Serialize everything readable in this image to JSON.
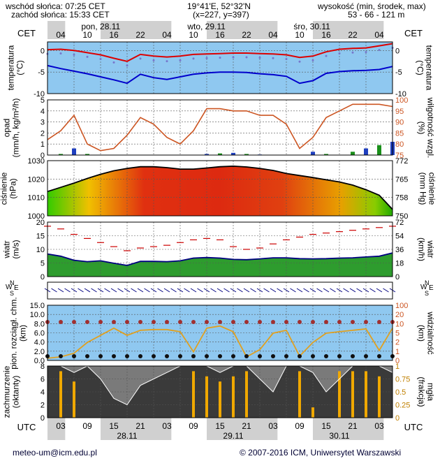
{
  "header": {
    "sunrise": "wschód słońca: 07:25 CET",
    "sunset": "zachód słońca: 15:33 CET",
    "coords": "19°41'E, 52°32'N",
    "grid": "(x=227, y=397)",
    "elev_label": "wysokość (min, środek, max)",
    "elev_values": "53 - 66 - 121 m"
  },
  "footer": {
    "email": "meteo-um@icm.edu.pl",
    "copyright": "© 2007-2016 ICM, Uniwersytet Warszawski"
  },
  "timezone_top": "CET",
  "timezone_bottom": "UTC",
  "top_days": [
    {
      "label": "pon, 28.11",
      "start_hour": 7
    },
    {
      "label": "wto, 29.11",
      "start_hour": 31
    },
    {
      "label": "śro, 30.11",
      "start_hour": 55
    }
  ],
  "top_hours": [
    "04",
    "10",
    "16",
    "22",
    "04",
    "10",
    "16",
    "22",
    "04",
    "10",
    "16",
    "22",
    "04"
  ],
  "bottom_hours": [
    "03",
    "09",
    "15",
    "21",
    "03",
    "09",
    "15",
    "21",
    "03",
    "09",
    "15",
    "21",
    "03"
  ],
  "bottom_days": [
    "28.11",
    "29.11",
    "30.11"
  ],
  "colors": {
    "temp_line": "#dd0000",
    "dew_line": "#0000cc",
    "humidity_line": "#cc5522",
    "pressure_line": "#000000",
    "wind_line": "#000080",
    "gust_marks": "#cc0000",
    "panel_blue": "#8fc8f0",
    "panel_gray": "#d0d0d0"
  },
  "chart_data": [
    {
      "type": "line",
      "panel": "temperature",
      "ylabel_left": "temperatura\n(°C)",
      "ylabel_right": "(°C)\ntemperatura",
      "ylim": [
        -10,
        2
      ],
      "yticks": [
        0,
        -5,
        -10
      ],
      "x_hours": [
        0,
        3,
        6,
        9,
        12,
        15,
        18,
        21,
        24,
        27,
        30,
        33,
        36,
        39,
        42,
        45,
        48,
        51,
        54,
        57,
        60,
        63,
        66,
        69,
        72,
        75,
        78
      ],
      "series": [
        {
          "values": [
            0.2,
            0.3,
            0.0,
            -0.5,
            -1.0,
            -1.8,
            -2.5,
            -0.9,
            -1.3,
            -1.5,
            -1.3,
            -0.9,
            -0.8,
            -0.7,
            -0.6,
            -0.6,
            -0.7,
            -0.8,
            -1.0,
            -1.6,
            -1.3,
            -0.3,
            0.3,
            0.5,
            0.6,
            1.1,
            1.6
          ]
        },
        {
          "values": [
            -3.5,
            -4.2,
            -4.8,
            -5.4,
            -6.1,
            -6.8,
            -7.6,
            -5.5,
            -6.3,
            -6.7,
            -6.1,
            -5.5,
            -5.2,
            -5.0,
            -5.0,
            -5.1,
            -5.4,
            -5.6,
            -6.0,
            -7.6,
            -7.0,
            -5.3,
            -4.9,
            -4.7,
            -4.6,
            -4.4,
            -3.7
          ]
        }
      ]
    },
    {
      "type": "line",
      "panel": "precipitation",
      "ylabel_left": "opad\n(mm/h, kg/m²/h)",
      "ylabel_right": "(%)\nwilgotność wzgl.",
      "ylim": [
        0,
        5
      ],
      "yticks": [
        0,
        1,
        2,
        3,
        4,
        5
      ],
      "y2lim": [
        75,
        100
      ],
      "y2ticks": [
        75,
        80,
        85,
        90,
        95,
        100
      ],
      "x_hours": [
        0,
        3,
        6,
        9,
        12,
        15,
        18,
        21,
        24,
        27,
        30,
        33,
        36,
        39,
        42,
        45,
        48,
        51,
        54,
        57,
        60,
        63,
        66,
        69,
        72,
        75,
        78
      ],
      "series": [
        {
          "values": [
            82,
            86,
            93,
            80,
            77,
            78,
            84,
            92,
            89,
            83,
            80,
            86,
            96,
            96,
            95,
            95,
            93,
            93,
            89,
            78,
            83,
            92,
            95,
            98,
            98,
            98,
            97
          ]
        }
      ],
      "precip_bars": [
        0,
        0.1,
        0.6,
        0.1,
        0,
        0,
        0,
        0,
        0,
        0,
        0,
        0,
        0.1,
        0.15,
        0.2,
        0.1,
        0.05,
        0,
        0,
        0,
        0.3,
        0.1,
        0,
        0.3,
        0.6,
        0.9,
        1.2
      ]
    },
    {
      "type": "area",
      "panel": "pressure",
      "ylabel_left": "ciśnienie\n(hPa)",
      "ylabel_right": "(mm Hg)\nciśnienie",
      "ylim": [
        1000,
        1030
      ],
      "yticks": [
        1000,
        1010,
        1020,
        1030
      ],
      "y2ticks": [
        750,
        758,
        765,
        772
      ],
      "x_hours": [
        0,
        3,
        6,
        9,
        12,
        15,
        18,
        21,
        24,
        27,
        30,
        33,
        36,
        39,
        42,
        45,
        48,
        51,
        54,
        57,
        60,
        63,
        66,
        69,
        72,
        75,
        78
      ],
      "series": [
        {
          "values": [
            1013.2,
            1015.5,
            1017.8,
            1020.3,
            1022.6,
            1024.5,
            1025.8,
            1026.7,
            1026.7,
            1026.2,
            1025.4,
            1025.4,
            1026.0,
            1026.7,
            1027.0,
            1026.6,
            1025.8,
            1024.7,
            1023.0,
            1021.9,
            1020.8,
            1019.6,
            1018.4,
            1016.7,
            1014.2,
            1011.2,
            1003.5
          ]
        }
      ]
    },
    {
      "type": "area",
      "panel": "wind",
      "ylabel_left": "wiatr\n(m/s)",
      "ylabel_right": "(km/h)\nwiatr",
      "ylim": [
        0,
        20
      ],
      "yticks": [
        0,
        5,
        10,
        15,
        20
      ],
      "y2ticks": [
        0,
        18,
        36,
        54,
        72
      ],
      "x_hours": [
        0,
        3,
        6,
        9,
        12,
        15,
        18,
        21,
        24,
        27,
        30,
        33,
        36,
        39,
        42,
        45,
        48,
        51,
        54,
        57,
        60,
        63,
        66,
        69,
        72,
        75,
        78
      ],
      "series": [
        {
          "values": [
            8.3,
            7.5,
            6.0,
            5.5,
            5.8,
            4.9,
            4.1,
            5.6,
            5.6,
            5.5,
            5.8,
            6.8,
            7.0,
            6.8,
            6.3,
            6.2,
            6.5,
            6.9,
            6.9,
            6.6,
            6.5,
            6.6,
            6.8,
            6.9,
            7.2,
            7.5,
            8.7
          ]
        },
        {
          "values": [
            18.5,
            17.5,
            15.5,
            14.0,
            12.5,
            11.0,
            9.5,
            10.5,
            11.0,
            11.5,
            12.5,
            13.5,
            14.0,
            13.5,
            11.0,
            10.0,
            10.5,
            12.0,
            13.5,
            14.5,
            15.5,
            16.0,
            16.5,
            17.0,
            17.5,
            18.0,
            18.5
          ]
        }
      ]
    },
    {
      "type": "scatter",
      "panel": "visibility",
      "ylabel_left": "pion. rozciągł. chm.\n(km)",
      "ylabel_right": "(km)\nwidzialność",
      "ylim": [
        0,
        15
      ],
      "yticks": [
        "0.0",
        "2.0",
        "4.0",
        "6.0",
        "8.0",
        "10.0",
        "15.0"
      ],
      "y2ticks": [
        "0",
        "1",
        "2",
        "5",
        "10",
        "20",
        "100"
      ],
      "x_hours": [
        0,
        3,
        6,
        9,
        12,
        15,
        18,
        21,
        24,
        27,
        30,
        33,
        36,
        39,
        42,
        45,
        48,
        51,
        54,
        57,
        60,
        63,
        66,
        69,
        72,
        75,
        78
      ],
      "series": [
        {
          "values": [
            0.3,
            0.5,
            1.0,
            2.5,
            3.5,
            4.5,
            3.5,
            4.2,
            4.3,
            4.3,
            4.0,
            1.2,
            4.5,
            4.8,
            4.0,
            0.5,
            1.5,
            3.8,
            4.2,
            0.6,
            2.5,
            3.8,
            4.0,
            4.2,
            4.4,
            1.4,
            4.5
          ]
        }
      ]
    },
    {
      "type": "area",
      "panel": "cloud",
      "ylabel_left": "zachmurzenie\n(oktanty)",
      "ylabel_right": "(frakcja)\nmgła",
      "ylim": [
        0,
        8
      ],
      "yticks": [
        0,
        2,
        4,
        6,
        8
      ],
      "y2ticks": [
        "0",
        "0.25",
        "0.5",
        "0.75",
        "1"
      ],
      "x_hours": [
        0,
        3,
        6,
        9,
        12,
        15,
        18,
        21,
        24,
        27,
        30,
        33,
        36,
        39,
        42,
        45,
        48,
        51,
        54,
        57,
        60,
        63,
        66,
        69,
        72,
        75,
        78
      ],
      "series": [
        {
          "values": [
            8,
            8,
            7,
            8,
            6,
            3,
            2,
            5,
            6,
            7,
            8,
            8,
            8,
            7,
            8,
            8,
            6,
            4,
            8,
            8,
            7,
            4,
            6,
            8,
            8,
            8,
            7
          ]
        }
      ],
      "fog_bars": [
        0,
        0.9,
        0.7,
        0,
        0,
        0,
        0,
        0,
        0,
        0,
        0,
        0.9,
        0.8,
        0.7,
        0.8,
        0.9,
        0,
        0,
        0,
        0.9,
        0.2,
        0,
        0.9,
        0.9,
        0.9,
        0.8,
        0
      ]
    }
  ]
}
